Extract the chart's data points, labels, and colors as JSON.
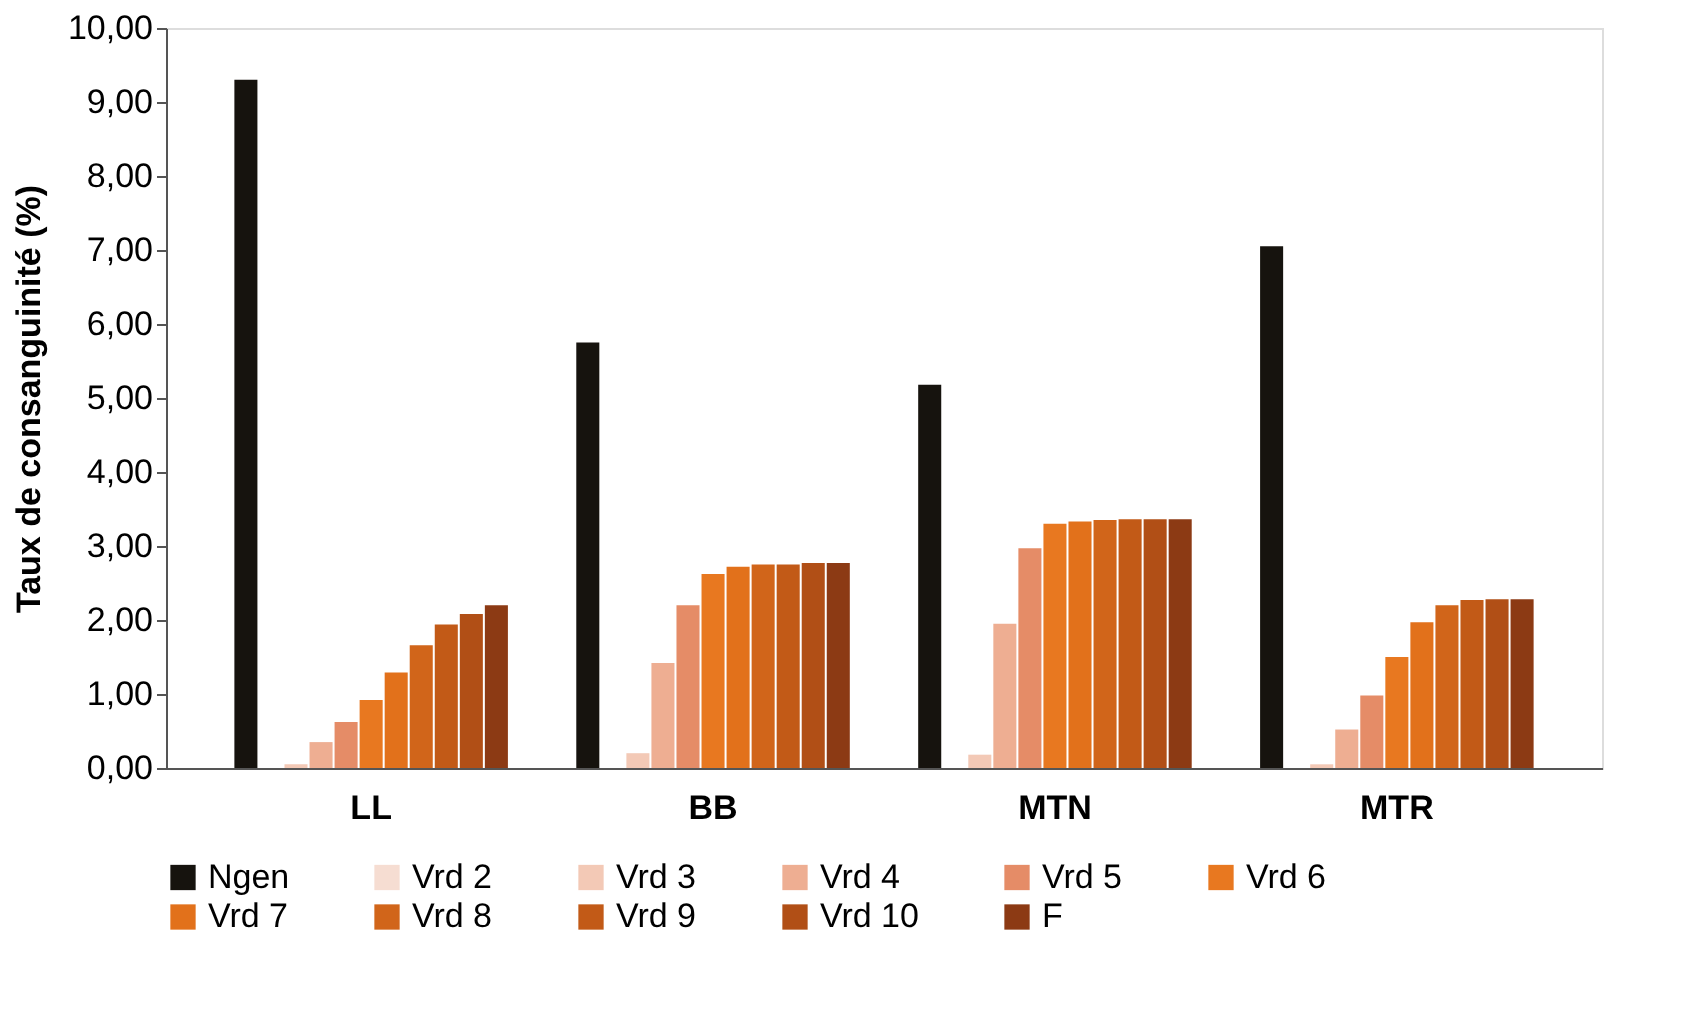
{
  "chart_data": {
    "type": "bar",
    "ylabel": "Taux de consanguinité (%)",
    "categories": [
      "LL",
      "BB",
      "MTN",
      "MTR"
    ],
    "series": [
      {
        "name": "Ngen",
        "color": "#16130e",
        "values": [
          9.3,
          5.75,
          5.18,
          7.05
        ]
      },
      {
        "name": "Vrd 2",
        "color": "#f6ddd2",
        "values": [
          null,
          null,
          null,
          null
        ]
      },
      {
        "name": "Vrd 3",
        "color": "#f3c9b6",
        "values": [
          0.05,
          0.2,
          0.18,
          0.05
        ]
      },
      {
        "name": "Vrd 4",
        "color": "#eeae92",
        "values": [
          0.35,
          1.42,
          1.95,
          0.52
        ]
      },
      {
        "name": "Vrd 5",
        "color": "#e58c67",
        "values": [
          0.62,
          2.2,
          2.97,
          0.98
        ]
      },
      {
        "name": "Vrd 6",
        "color": "#e87820",
        "values": [
          0.92,
          2.62,
          3.3,
          1.5
        ]
      },
      {
        "name": "Vrd 7",
        "color": "#e2711b",
        "values": [
          1.29,
          2.72,
          3.33,
          1.97
        ]
      },
      {
        "name": "Vrd 8",
        "color": "#d1651a",
        "values": [
          1.66,
          2.75,
          3.35,
          2.2
        ]
      },
      {
        "name": "Vrd 9",
        "color": "#c25a17",
        "values": [
          1.94,
          2.75,
          3.36,
          2.27
        ]
      },
      {
        "name": "Vrd 10",
        "color": "#b14f16",
        "values": [
          2.08,
          2.77,
          3.36,
          2.28
        ]
      },
      {
        "name": "F",
        "color": "#8c3a14",
        "values": [
          2.2,
          2.77,
          3.36,
          2.28
        ]
      }
    ],
    "ylim": [
      0,
      10
    ],
    "yticks": [
      {
        "value": 0,
        "label": "0,00"
      },
      {
        "value": 1,
        "label": "1,00"
      },
      {
        "value": 2,
        "label": "2,00"
      },
      {
        "value": 3,
        "label": "3,00"
      },
      {
        "value": 4,
        "label": "4,00"
      },
      {
        "value": 5,
        "label": "5,00"
      },
      {
        "value": 6,
        "label": "6,00"
      },
      {
        "value": 7,
        "label": "7,00"
      },
      {
        "value": 8,
        "label": "8,00"
      },
      {
        "value": 9,
        "label": "9,00"
      },
      {
        "value": 10,
        "label": "10,00"
      }
    ],
    "grid": false,
    "legend": "bottom"
  }
}
